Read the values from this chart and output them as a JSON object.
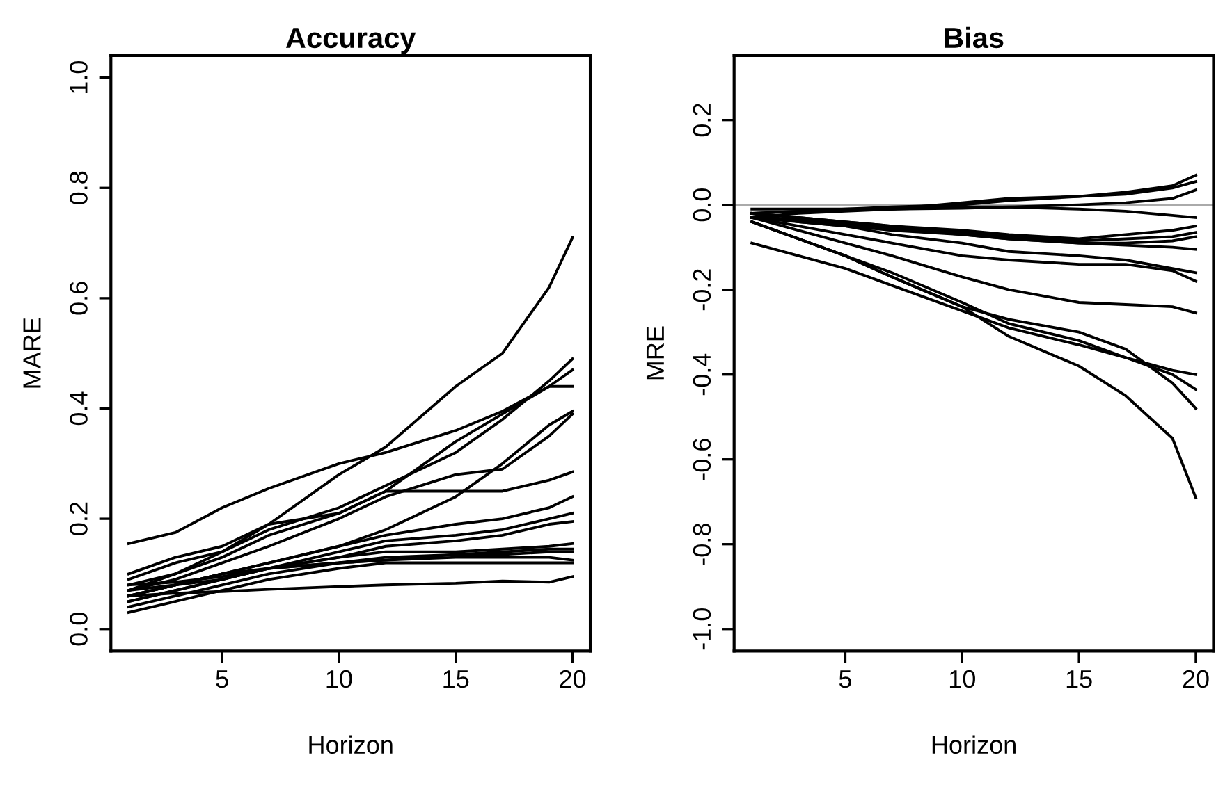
{
  "chart_data": [
    {
      "type": "line",
      "title": "Accuracy",
      "xlabel": "Horizon",
      "ylabel": "MARE",
      "xlim": [
        0.24,
        20.76
      ],
      "ylim": [
        -0.04,
        1.04
      ],
      "xticks": [
        5,
        10,
        15,
        20
      ],
      "yticks": [
        {
          "value": 0,
          "label": "0.0"
        },
        0.2,
        0.4,
        0.6,
        0.8,
        {
          "value": 1,
          "label": "1.0"
        }
      ],
      "x": [
        1,
        3,
        5,
        7,
        10,
        12,
        15,
        17,
        19,
        20
      ],
      "grid": false,
      "legend": false,
      "series": [
        {
          "color": "#000000",
          "values": [
            0.155,
            0.175,
            0.22,
            0.255,
            0.3,
            0.32,
            0.36,
            0.395,
            0.44,
            0.44
          ]
        },
        {
          "color": "#000000",
          "values": [
            0.07,
            0.1,
            0.14,
            0.19,
            0.28,
            0.33,
            0.44,
            0.5,
            0.62,
            0.71
          ]
        },
        {
          "color": "#000000",
          "values": [
            0.09,
            0.12,
            0.14,
            0.18,
            0.22,
            0.26,
            0.32,
            0.38,
            0.45,
            0.49
          ]
        },
        {
          "color": "#000000",
          "values": [
            0.1,
            0.13,
            0.15,
            0.19,
            0.21,
            0.25,
            0.34,
            0.39,
            0.44,
            0.47
          ]
        },
        {
          "color": "#000000",
          "values": [
            0.06,
            0.08,
            0.1,
            0.12,
            0.15,
            0.18,
            0.24,
            0.3,
            0.37,
            0.395
          ]
        },
        {
          "color": "#000000",
          "values": [
            0.07,
            0.09,
            0.12,
            0.15,
            0.2,
            0.24,
            0.28,
            0.29,
            0.35,
            0.39
          ]
        },
        {
          "color": "#000000",
          "values": [
            0.08,
            0.1,
            0.13,
            0.17,
            0.21,
            0.25,
            0.25,
            0.25,
            0.27,
            0.285
          ]
        },
        {
          "color": "#000000",
          "values": [
            0.06,
            0.08,
            0.1,
            0.12,
            0.15,
            0.17,
            0.19,
            0.2,
            0.22,
            0.24
          ]
        },
        {
          "color": "#000000",
          "values": [
            0.05,
            0.07,
            0.09,
            0.11,
            0.14,
            0.16,
            0.17,
            0.18,
            0.2,
            0.21
          ]
        },
        {
          "color": "#000000",
          "values": [
            0.06,
            0.08,
            0.09,
            0.11,
            0.13,
            0.15,
            0.16,
            0.17,
            0.19,
            0.195
          ]
        },
        {
          "color": "#000000",
          "values": [
            0.07,
            0.08,
            0.1,
            0.11,
            0.13,
            0.14,
            0.14,
            0.145,
            0.15,
            0.155
          ]
        },
        {
          "color": "#000000",
          "values": [
            0.05,
            0.07,
            0.09,
            0.11,
            0.12,
            0.13,
            0.135,
            0.14,
            0.145,
            0.145
          ]
        },
        {
          "color": "#000000",
          "values": [
            0.04,
            0.06,
            0.08,
            0.1,
            0.12,
            0.125,
            0.13,
            0.13,
            0.13,
            0.125
          ]
        },
        {
          "color": "#000000",
          "values": [
            0.03,
            0.05,
            0.07,
            0.09,
            0.11,
            0.12,
            0.12,
            0.12,
            0.12,
            0.12
          ]
        },
        {
          "color": "#000000",
          "values": [
            0.06,
            0.065,
            0.068,
            0.072,
            0.077,
            0.08,
            0.083,
            0.087,
            0.085,
            0.095
          ]
        },
        {
          "color": "#000000",
          "values": [
            0.08,
            0.085,
            0.095,
            0.11,
            0.12,
            0.125,
            0.135,
            0.135,
            0.14,
            0.14
          ]
        }
      ]
    },
    {
      "type": "line",
      "title": "Bias",
      "xlabel": "Horizon",
      "ylabel": "MRE",
      "xlim": [
        0.24,
        20.76
      ],
      "ylim": [
        -1.052,
        0.352
      ],
      "xticks": [
        5,
        10,
        15,
        20
      ],
      "yticks": [
        {
          "value": -1,
          "label": "-1.0"
        },
        -0.8,
        -0.6,
        -0.4,
        -0.2,
        {
          "value": 0,
          "label": "0.0"
        },
        0.2
      ],
      "x": [
        1,
        3,
        5,
        7,
        10,
        12,
        15,
        17,
        19,
        20
      ],
      "grid": false,
      "legend": false,
      "ref_lines": [
        {
          "axis": "y",
          "value": 0,
          "color": "#aaaaaa"
        }
      ],
      "series": [
        {
          "color": "#000000",
          "values": [
            -0.03,
            -0.02,
            -0.015,
            -0.01,
            0.005,
            0.015,
            0.02,
            0.03,
            0.045,
            0.07
          ]
        },
        {
          "color": "#000000",
          "values": [
            -0.02,
            -0.015,
            -0.01,
            -0.005,
            0.0,
            0.01,
            0.02,
            0.025,
            0.04,
            0.055
          ]
        },
        {
          "color": "#000000",
          "values": [
            -0.02,
            -0.015,
            -0.012,
            -0.01,
            -0.008,
            -0.005,
            0.0,
            0.005,
            0.015,
            0.035
          ]
        },
        {
          "color": "#000000",
          "values": [
            -0.01,
            -0.01,
            -0.01,
            -0.01,
            -0.005,
            -0.005,
            -0.01,
            -0.015,
            -0.025,
            -0.03
          ]
        },
        {
          "color": "#000000",
          "values": [
            -0.02,
            -0.03,
            -0.04,
            -0.05,
            -0.06,
            -0.07,
            -0.08,
            -0.07,
            -0.06,
            -0.05
          ]
        },
        {
          "color": "#000000",
          "values": [
            -0.02,
            -0.03,
            -0.04,
            -0.05,
            -0.065,
            -0.075,
            -0.085,
            -0.08,
            -0.075,
            -0.065
          ]
        },
        {
          "color": "#000000",
          "values": [
            -0.03,
            -0.035,
            -0.045,
            -0.055,
            -0.07,
            -0.08,
            -0.09,
            -0.09,
            -0.085,
            -0.075
          ]
        },
        {
          "color": "#000000",
          "values": [
            -0.03,
            -0.04,
            -0.05,
            -0.06,
            -0.07,
            -0.08,
            -0.09,
            -0.095,
            -0.1,
            -0.105
          ]
        },
        {
          "color": "#000000",
          "values": [
            -0.03,
            -0.05,
            -0.07,
            -0.09,
            -0.12,
            -0.13,
            -0.14,
            -0.14,
            -0.155,
            -0.18
          ]
        },
        {
          "color": "#000000",
          "values": [
            -0.02,
            -0.04,
            -0.05,
            -0.07,
            -0.09,
            -0.11,
            -0.12,
            -0.13,
            -0.15,
            -0.16
          ]
        },
        {
          "color": "#000000",
          "values": [
            -0.03,
            -0.06,
            -0.09,
            -0.12,
            -0.17,
            -0.2,
            -0.23,
            -0.235,
            -0.24,
            -0.255
          ]
        },
        {
          "color": "#000000",
          "values": [
            -0.09,
            -0.12,
            -0.15,
            -0.19,
            -0.25,
            -0.29,
            -0.33,
            -0.36,
            -0.39,
            -0.4
          ]
        },
        {
          "color": "#000000",
          "values": [
            -0.04,
            -0.08,
            -0.12,
            -0.16,
            -0.23,
            -0.28,
            -0.32,
            -0.36,
            -0.4,
            -0.435
          ]
        },
        {
          "color": "#000000",
          "values": [
            -0.04,
            -0.08,
            -0.12,
            -0.17,
            -0.24,
            -0.27,
            -0.3,
            -0.34,
            -0.42,
            -0.48
          ]
        },
        {
          "color": "#000000",
          "values": [
            -0.04,
            -0.08,
            -0.12,
            -0.17,
            -0.24,
            -0.31,
            -0.38,
            -0.45,
            -0.55,
            -0.69
          ]
        }
      ]
    }
  ]
}
